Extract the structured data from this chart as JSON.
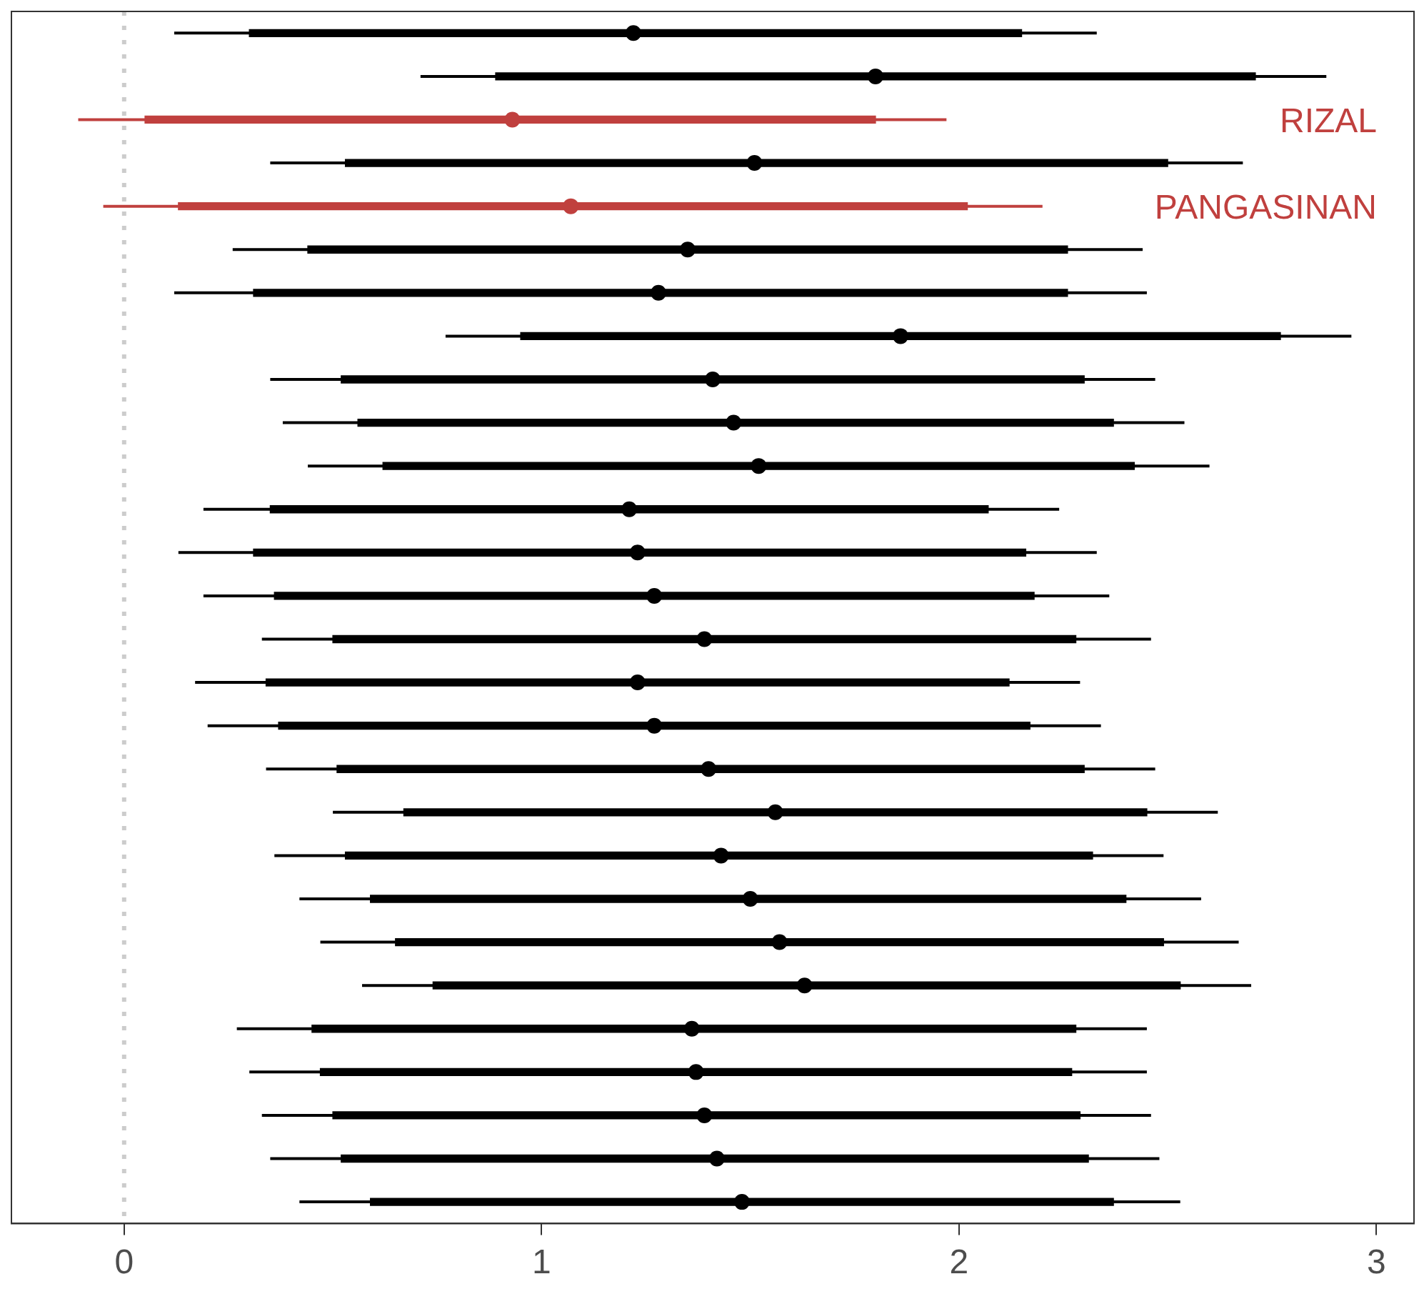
{
  "chart_data": {
    "type": "box",
    "orientation": "horizontal",
    "categories": [
      null,
      null,
      "RIZAL",
      null,
      "PANGASINAN",
      null,
      null,
      null,
      null,
      null,
      null,
      null,
      null,
      null,
      null,
      null,
      null,
      null,
      null,
      null,
      null,
      null,
      null,
      null,
      null,
      null,
      null,
      null
    ],
    "boxes": [
      {
        "low": 0.12,
        "q1": 0.3,
        "median": 1.22,
        "q3": 2.15,
        "high": 2.33
      },
      {
        "low": 0.71,
        "q1": 0.89,
        "median": 1.8,
        "q3": 2.71,
        "high": 2.88
      },
      {
        "low": -0.11,
        "q1": 0.05,
        "median": 0.93,
        "q3": 1.8,
        "high": 1.97
      },
      {
        "low": 0.35,
        "q1": 0.53,
        "median": 1.51,
        "q3": 2.5,
        "high": 2.68
      },
      {
        "low": -0.05,
        "q1": 0.13,
        "median": 1.07,
        "q3": 2.02,
        "high": 2.2
      },
      {
        "low": 0.26,
        "q1": 0.44,
        "median": 1.35,
        "q3": 2.26,
        "high": 2.44
      },
      {
        "low": 0.12,
        "q1": 0.31,
        "median": 1.28,
        "q3": 2.26,
        "high": 2.45
      },
      {
        "low": 0.77,
        "q1": 0.95,
        "median": 1.86,
        "q3": 2.77,
        "high": 2.94
      },
      {
        "low": 0.35,
        "q1": 0.52,
        "median": 1.41,
        "q3": 2.3,
        "high": 2.47
      },
      {
        "low": 0.38,
        "q1": 0.56,
        "median": 1.46,
        "q3": 2.37,
        "high": 2.54
      },
      {
        "low": 0.44,
        "q1": 0.62,
        "median": 1.52,
        "q3": 2.42,
        "high": 2.6
      },
      {
        "low": 0.19,
        "q1": 0.35,
        "median": 1.21,
        "q3": 2.07,
        "high": 2.24
      },
      {
        "low": 0.13,
        "q1": 0.31,
        "median": 1.23,
        "q3": 2.16,
        "high": 2.33
      },
      {
        "low": 0.19,
        "q1": 0.36,
        "median": 1.27,
        "q3": 2.18,
        "high": 2.36
      },
      {
        "low": 0.33,
        "q1": 0.5,
        "median": 1.39,
        "q3": 2.28,
        "high": 2.46
      },
      {
        "low": 0.17,
        "q1": 0.34,
        "median": 1.23,
        "q3": 2.12,
        "high": 2.29
      },
      {
        "low": 0.2,
        "q1": 0.37,
        "median": 1.27,
        "q3": 2.17,
        "high": 2.34
      },
      {
        "low": 0.34,
        "q1": 0.51,
        "median": 1.4,
        "q3": 2.3,
        "high": 2.47
      },
      {
        "low": 0.5,
        "q1": 0.67,
        "median": 1.56,
        "q3": 2.45,
        "high": 2.62
      },
      {
        "low": 0.36,
        "q1": 0.53,
        "median": 1.43,
        "q3": 2.32,
        "high": 2.49
      },
      {
        "low": 0.42,
        "q1": 0.59,
        "median": 1.5,
        "q3": 2.4,
        "high": 2.58
      },
      {
        "low": 0.47,
        "q1": 0.65,
        "median": 1.57,
        "q3": 2.49,
        "high": 2.67
      },
      {
        "low": 0.57,
        "q1": 0.74,
        "median": 1.63,
        "q3": 2.53,
        "high": 2.7
      },
      {
        "low": 0.27,
        "q1": 0.45,
        "median": 1.36,
        "q3": 2.28,
        "high": 2.45
      },
      {
        "low": 0.3,
        "q1": 0.47,
        "median": 1.37,
        "q3": 2.27,
        "high": 2.45
      },
      {
        "low": 0.33,
        "q1": 0.5,
        "median": 1.39,
        "q3": 2.29,
        "high": 2.46
      },
      {
        "low": 0.35,
        "q1": 0.52,
        "median": 1.42,
        "q3": 2.31,
        "high": 2.48
      },
      {
        "low": 0.42,
        "q1": 0.59,
        "median": 1.48,
        "q3": 2.37,
        "high": 2.53
      }
    ],
    "colors": [
      "#000000",
      "#000000",
      "#c0403e",
      "#000000",
      "#c0403e",
      "#000000",
      "#000000",
      "#000000",
      "#000000",
      "#000000",
      "#000000",
      "#000000",
      "#000000",
      "#000000",
      "#000000",
      "#000000",
      "#000000",
      "#000000",
      "#000000",
      "#000000",
      "#000000",
      "#000000",
      "#000000",
      "#000000",
      "#000000",
      "#000000",
      "#000000",
      "#000000"
    ],
    "xlim": [
      -0.27,
      3.09
    ],
    "xticks": [
      0,
      1,
      2,
      3
    ],
    "ref_lines": [
      {
        "axis": "x",
        "value": 0,
        "color": "#cccccc",
        "line_style": "dotted"
      }
    ],
    "tick_labels": "x",
    "marker": "circle",
    "legend": false,
    "grid": false
  }
}
